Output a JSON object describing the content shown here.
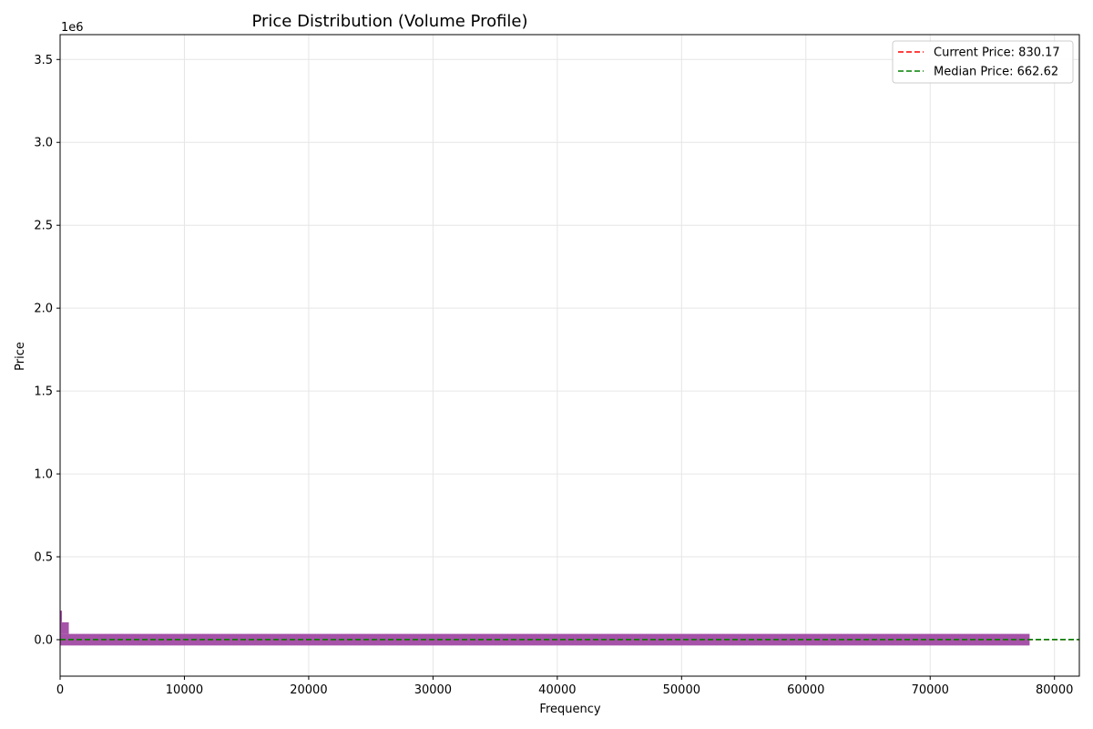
{
  "chart_data": {
    "type": "bar",
    "orientation": "horizontal",
    "title": "Price Distribution (Volume Profile)",
    "xlabel": "Frequency",
    "ylabel": "Price",
    "y_offset_label": "1e6",
    "y_scale": 1000000,
    "xlim": [
      0,
      82000
    ],
    "ylim": [
      -220000,
      3650000
    ],
    "x_ticks": [
      0,
      10000,
      20000,
      30000,
      40000,
      50000,
      60000,
      70000,
      80000
    ],
    "x_tick_labels": [
      "0",
      "10000",
      "20000",
      "30000",
      "40000",
      "50000",
      "60000",
      "70000",
      "80000"
    ],
    "y_ticks": [
      0,
      500000,
      1000000,
      1500000,
      2000000,
      2500000,
      3000000,
      3500000
    ],
    "y_tick_labels": [
      "0.0",
      "0.5",
      "1.0",
      "1.5",
      "2.0",
      "2.5",
      "3.0",
      "3.5"
    ],
    "grid": true,
    "bar_color": "#9b3f9e",
    "bars": [
      {
        "price_low": -35000,
        "price_high": 35000,
        "frequency": 78000
      },
      {
        "price_low": 35000,
        "price_high": 105000,
        "frequency": 700
      },
      {
        "price_low": 105000,
        "price_high": 175000,
        "frequency": 150
      }
    ],
    "lines": [
      {
        "name": "Current Price: 830.17",
        "value": 830.17,
        "color": "#ff0000",
        "style": "dashed"
      },
      {
        "name": "Median Price: 662.62",
        "value": 662.62,
        "color": "#008000",
        "style": "dashed"
      }
    ],
    "legend_position": "top-right"
  }
}
